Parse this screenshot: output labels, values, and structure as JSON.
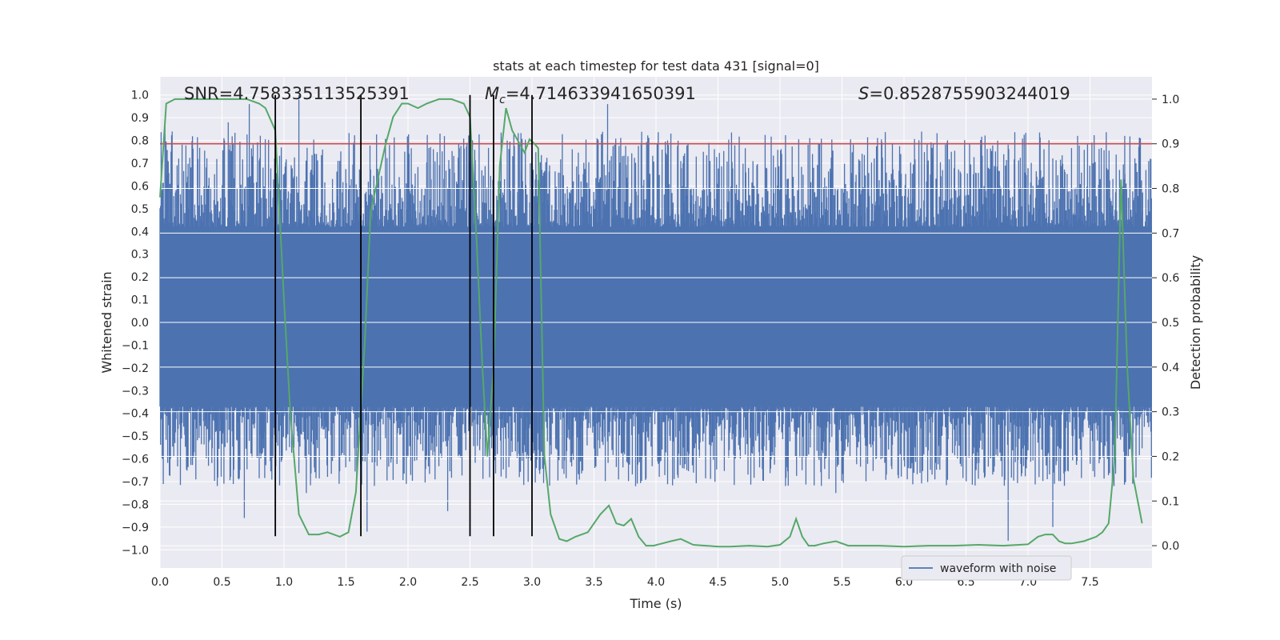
{
  "chart_data": {
    "type": "line",
    "title": "stats at each timestep for test data 431 [signal=0]",
    "xlabel": "Time (s)",
    "ylabel_left": "Whitened strain",
    "ylabel_right": "Detection probability",
    "xlim": [
      0.0,
      8.0
    ],
    "ylim_left": [
      -1.08,
      1.08
    ],
    "ylim_right": [
      -0.05,
      1.05
    ],
    "xticks": [
      "0.0",
      "0.5",
      "1.0",
      "1.5",
      "2.0",
      "2.5",
      "3.0",
      "3.5",
      "4.0",
      "4.5",
      "5.0",
      "5.5",
      "6.0",
      "6.5",
      "7.0",
      "7.5"
    ],
    "yticks_left": [
      "1.0",
      "0.9",
      "0.8",
      "0.7",
      "0.6",
      "0.5",
      "0.4",
      "0.3",
      "0.2",
      "0.1",
      "0.0",
      "-0.1",
      "-0.2",
      "-0.3",
      "-0.4",
      "-0.5",
      "-0.6",
      "-0.7",
      "-0.8",
      "-0.9",
      "-1.0"
    ],
    "yticks_right": [
      "1.0",
      "0.9",
      "0.8",
      "0.7",
      "0.6",
      "0.5",
      "0.4",
      "0.3",
      "0.2",
      "0.1",
      "0.0"
    ],
    "annotations": {
      "snr": "SNR=4.758335113525391",
      "mc_prefix": "M",
      "mc_sub": "c",
      "mc_value": "=4.714633941650391",
      "s_prefix": "S",
      "s_value": "=0.8528755903244019"
    },
    "legend": {
      "label": "waveform with noise",
      "location": "lower-right"
    },
    "threshold": {
      "value": 0.9,
      "axis": "right",
      "color": "#c44e52"
    },
    "vertical_lines": [
      0.93,
      1.62,
      2.5,
      2.69,
      3.0
    ],
    "vertical_line_range_left": [
      -0.94,
      1.0
    ],
    "waveform": {
      "name": "waveform with noise",
      "color": "#4c72b0",
      "samples": 1800,
      "core_band": [
        -0.37,
        0.42
      ],
      "peaks": [
        {
          "t": 0.04,
          "v": 0.86
        },
        {
          "t": 0.55,
          "v": 0.88
        },
        {
          "t": 0.58,
          "v": 0.73
        },
        {
          "t": 0.72,
          "v": 0.96
        },
        {
          "t": 1.12,
          "v": 1.0
        },
        {
          "t": 1.85,
          "v": 0.78
        },
        {
          "t": 2.8,
          "v": 0.8
        },
        {
          "t": 3.61,
          "v": 0.96
        },
        {
          "t": 4.1,
          "v": 0.78
        },
        {
          "t": 7.78,
          "v": 0.82
        },
        {
          "t": 0.68,
          "v": -0.86
        },
        {
          "t": 1.67,
          "v": -0.92
        },
        {
          "t": 2.32,
          "v": -0.83
        },
        {
          "t": 6.84,
          "v": -0.96
        },
        {
          "t": 7.2,
          "v": -0.9
        },
        {
          "t": 5.45,
          "v": -0.75
        },
        {
          "t": 1.18,
          "v": -0.75
        }
      ]
    },
    "series": [
      {
        "name": "detection probability",
        "axis": "right",
        "color": "#55a868",
        "x": [
          0.0,
          0.05,
          0.12,
          0.2,
          0.3,
          0.4,
          0.5,
          0.6,
          0.7,
          0.8,
          0.85,
          0.93,
          1.0,
          1.05,
          1.12,
          1.2,
          1.28,
          1.35,
          1.4,
          1.45,
          1.52,
          1.58,
          1.65,
          1.7,
          1.78,
          1.82,
          1.88,
          1.95,
          2.0,
          2.08,
          2.15,
          2.25,
          2.35,
          2.45,
          2.5,
          2.55,
          2.6,
          2.64,
          2.69,
          2.74,
          2.79,
          2.84,
          2.9,
          2.94,
          2.98,
          3.02,
          3.05,
          3.1,
          3.15,
          3.22,
          3.28,
          3.35,
          3.45,
          3.55,
          3.62,
          3.68,
          3.74,
          3.8,
          3.86,
          3.92,
          3.98,
          4.05,
          4.12,
          4.2,
          4.3,
          4.4,
          4.5,
          4.6,
          4.75,
          4.9,
          5.0,
          5.08,
          5.13,
          5.18,
          5.23,
          5.28,
          5.35,
          5.45,
          5.55,
          5.65,
          5.8,
          6.0,
          6.2,
          6.4,
          6.6,
          6.8,
          7.0,
          7.08,
          7.14,
          7.2,
          7.25,
          7.3,
          7.35,
          7.45,
          7.55,
          7.6,
          7.65,
          7.7,
          7.75,
          7.8,
          7.85,
          7.92
        ],
        "y": [
          0.78,
          0.99,
          1.0,
          1.0,
          1.0,
          1.0,
          1.0,
          1.0,
          1.0,
          0.99,
          0.98,
          0.93,
          0.55,
          0.3,
          0.07,
          0.025,
          0.025,
          0.03,
          0.025,
          0.02,
          0.03,
          0.12,
          0.45,
          0.75,
          0.85,
          0.9,
          0.96,
          0.99,
          0.99,
          0.98,
          0.99,
          1.0,
          1.0,
          0.99,
          0.96,
          0.7,
          0.4,
          0.2,
          0.4,
          0.85,
          0.98,
          0.93,
          0.9,
          0.88,
          0.91,
          0.9,
          0.89,
          0.2,
          0.07,
          0.015,
          0.01,
          0.02,
          0.03,
          0.07,
          0.09,
          0.05,
          0.045,
          0.06,
          0.02,
          0.0,
          0.0,
          0.005,
          0.01,
          0.015,
          0.002,
          0.0,
          -0.002,
          -0.002,
          0.0,
          -0.002,
          0.002,
          0.02,
          0.06,
          0.02,
          0.0,
          0.0,
          0.005,
          0.01,
          0.0,
          0.0,
          0.0,
          -0.002,
          0.0,
          0.0,
          0.002,
          0.0,
          0.003,
          0.02,
          0.025,
          0.025,
          0.01,
          0.005,
          0.005,
          0.01,
          0.02,
          0.03,
          0.05,
          0.2,
          0.82,
          0.4,
          0.15,
          0.05
        ]
      }
    ]
  }
}
